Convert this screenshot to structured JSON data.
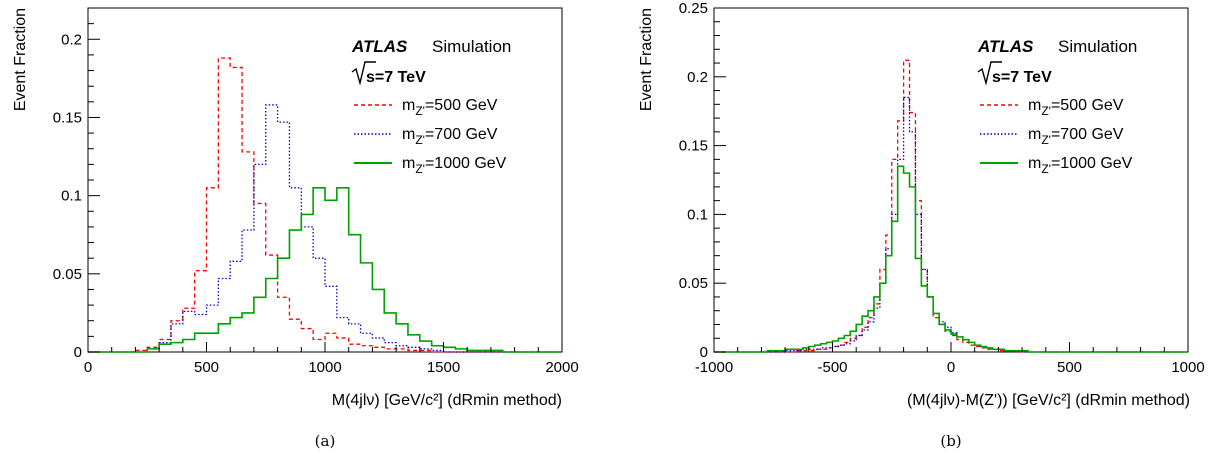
{
  "chart_data": [
    {
      "type": "histogram",
      "panel_label": "(a)",
      "title": "",
      "xlabel": "M(4jlν) [GeV/c²] (dRmin method)",
      "ylabel": "Event Fraction",
      "xlim": [
        0,
        2000
      ],
      "ylim": [
        0,
        0.22
      ],
      "x_ticks": [
        0,
        500,
        1000,
        1500,
        2000
      ],
      "y_ticks": [
        0,
        0.05,
        0.1,
        0.15,
        0.2
      ],
      "grid": false,
      "bin_width": 50,
      "legend_position": "top-right",
      "annotations": {
        "atlas": "ATLAS",
        "simulation": "Simulation",
        "energy_label": "=7 TeV"
      },
      "series": [
        {
          "name": "m_Z'=500 GeV",
          "color": "#ff0000",
          "style": "dashed",
          "values": [
            0,
            0,
            0,
            0,
            0.001,
            0.003,
            0.008,
            0.02,
            0.028,
            0.052,
            0.105,
            0.188,
            0.182,
            0.128,
            0.095,
            0.062,
            0.035,
            0.021,
            0.015,
            0.008,
            0.012,
            0.009,
            0.005,
            0.004,
            0.003,
            0.002,
            0.002,
            0.001,
            0.001,
            0,
            0,
            0,
            0,
            0,
            0,
            0,
            0,
            0,
            0,
            0
          ]
        },
        {
          "name": "m_Z'=700 GeV",
          "color": "#0000cc",
          "style": "dotted",
          "values": [
            0,
            0,
            0,
            0,
            0,
            0.002,
            0.006,
            0.018,
            0.026,
            0.024,
            0.03,
            0.047,
            0.058,
            0.078,
            0.12,
            0.158,
            0.147,
            0.105,
            0.08,
            0.06,
            0.042,
            0.022,
            0.018,
            0.012,
            0.009,
            0.006,
            0.004,
            0.003,
            0.002,
            0.001,
            0,
            0,
            0,
            0,
            0,
            0,
            0,
            0,
            0,
            0
          ]
        },
        {
          "name": "m_Z'=1000 GeV",
          "color": "#00a000",
          "style": "solid",
          "values": [
            0,
            0,
            0,
            0,
            0,
            0.002,
            0.005,
            0.006,
            0.008,
            0.012,
            0.012,
            0.018,
            0.022,
            0.025,
            0.035,
            0.047,
            0.06,
            0.078,
            0.088,
            0.105,
            0.097,
            0.105,
            0.075,
            0.057,
            0.04,
            0.025,
            0.018,
            0.011,
            0.007,
            0.004,
            0.003,
            0.002,
            0.001,
            0.001,
            0.001,
            0,
            0,
            0,
            0,
            0
          ]
        }
      ]
    },
    {
      "type": "histogram",
      "panel_label": "(b)",
      "title": "",
      "xlabel": "(M(4jlν)-M(Z')) [GeV/c²] (dRmin method)",
      "ylabel": "Event Fraction",
      "xlim": [
        -1000,
        1000
      ],
      "ylim": [
        0,
        0.25
      ],
      "x_ticks": [
        -1000,
        -500,
        0,
        500,
        1000
      ],
      "y_ticks": [
        0,
        0.05,
        0.1,
        0.15,
        0.2,
        0.25
      ],
      "grid": false,
      "bin_width": 25,
      "legend_position": "top-right",
      "annotations": {
        "atlas": "ATLAS",
        "simulation": "Simulation",
        "energy_label": "=7 TeV"
      },
      "series": [
        {
          "name": "m_Z'=500 GeV",
          "color": "#ff0000",
          "style": "dashed",
          "values": [
            0,
            0,
            0,
            0,
            0,
            0,
            0,
            0,
            0,
            0,
            0,
            0,
            0,
            0,
            0.001,
            0.001,
            0.001,
            0.002,
            0.002,
            0.003,
            0.004,
            0.005,
            0.007,
            0.01,
            0.012,
            0.018,
            0.025,
            0.035,
            0.06,
            0.085,
            0.14,
            0.168,
            0.212,
            0.174,
            0.11,
            0.06,
            0.04,
            0.025,
            0.02,
            0.015,
            0.012,
            0.009,
            0.007,
            0.005,
            0.004,
            0.003,
            0.002,
            0.002,
            0.001,
            0.001,
            0.001,
            0,
            0,
            0,
            0,
            0,
            0,
            0,
            0,
            0,
            0,
            0,
            0,
            0,
            0,
            0,
            0,
            0,
            0,
            0,
            0,
            0,
            0,
            0,
            0,
            0,
            0,
            0,
            0,
            0
          ]
        },
        {
          "name": "m_Z'=700 GeV",
          "color": "#0000cc",
          "style": "dotted",
          "values": [
            0,
            0,
            0,
            0,
            0,
            0,
            0,
            0,
            0,
            0,
            0,
            0,
            0.001,
            0.001,
            0.001,
            0.002,
            0.002,
            0.002,
            0.003,
            0.003,
            0.004,
            0.005,
            0.006,
            0.008,
            0.012,
            0.016,
            0.022,
            0.032,
            0.05,
            0.075,
            0.1,
            0.14,
            0.185,
            0.16,
            0.1,
            0.06,
            0.04,
            0.028,
            0.022,
            0.018,
            0.014,
            0.011,
            0.009,
            0.007,
            0.005,
            0.004,
            0.003,
            0.002,
            0.002,
            0.001,
            0.001,
            0.001,
            0,
            0,
            0,
            0,
            0,
            0,
            0,
            0,
            0,
            0,
            0,
            0,
            0,
            0,
            0,
            0,
            0,
            0,
            0,
            0,
            0,
            0,
            0,
            0,
            0,
            0,
            0,
            0
          ]
        },
        {
          "name": "m_Z'=1000 GeV",
          "color": "#00a000",
          "style": "solid",
          "values": [
            0,
            0,
            0,
            0,
            0,
            0,
            0,
            0,
            0,
            0.001,
            0.001,
            0.001,
            0.002,
            0.002,
            0.002,
            0.003,
            0.004,
            0.005,
            0.006,
            0.007,
            0.008,
            0.01,
            0.012,
            0.015,
            0.02,
            0.026,
            0.03,
            0.04,
            0.05,
            0.07,
            0.095,
            0.135,
            0.13,
            0.12,
            0.068,
            0.048,
            0.04,
            0.028,
            0.02,
            0.016,
            0.013,
            0.011,
            0.009,
            0.007,
            0.005,
            0.004,
            0.003,
            0.002,
            0.002,
            0.001,
            0.001,
            0.001,
            0.001,
            0,
            0,
            0,
            0,
            0,
            0,
            0,
            0,
            0,
            0,
            0,
            0,
            0,
            0,
            0,
            0,
            0,
            0,
            0,
            0,
            0,
            0,
            0,
            0,
            0,
            0,
            0
          ]
        }
      ]
    }
  ]
}
